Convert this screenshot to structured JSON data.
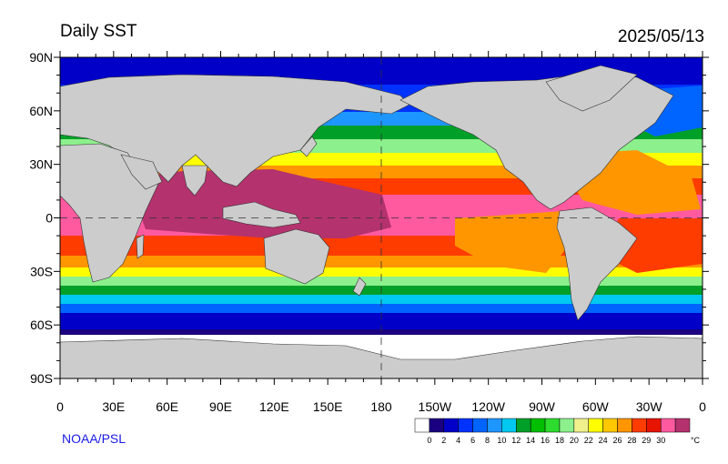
{
  "header": {
    "title": "Daily SST",
    "date": "2025/05/13"
  },
  "credit": "NOAA/PSL",
  "axes": {
    "lat_labels": [
      "90N",
      "60N",
      "30N",
      "0",
      "30S",
      "60S",
      "90S"
    ],
    "lon_labels": [
      "0",
      "30E",
      "60E",
      "90E",
      "120E",
      "150E",
      "180",
      "150W",
      "120W",
      "90W",
      "60W",
      "30W",
      "0"
    ]
  },
  "colorbar": {
    "unit": "°C",
    "tick_labels": [
      "0",
      "2",
      "4",
      "6",
      "8",
      "10",
      "12",
      "14",
      "16",
      "18",
      "20",
      "22",
      "24",
      "26",
      "28",
      "29",
      "30"
    ],
    "colors": [
      "#ffffff",
      "#1a0080",
      "#0000c8",
      "#0032ff",
      "#0064ff",
      "#1e96ff",
      "#00c8f0",
      "#00a028",
      "#00be00",
      "#2ddc2d",
      "#8cf08c",
      "#f0f08c",
      "#ffff00",
      "#ffc800",
      "#ff9600",
      "#ff3c00",
      "#e61400",
      "#ff5aa0",
      "#b4326e"
    ]
  },
  "map": {
    "projection": "cylindrical-equidistant",
    "lon_range": [
      0,
      360
    ],
    "lat_range": [
      -90,
      90
    ],
    "land_color": "#cccccc",
    "dashed_reference_lines": [
      "equator",
      "180"
    ]
  }
}
